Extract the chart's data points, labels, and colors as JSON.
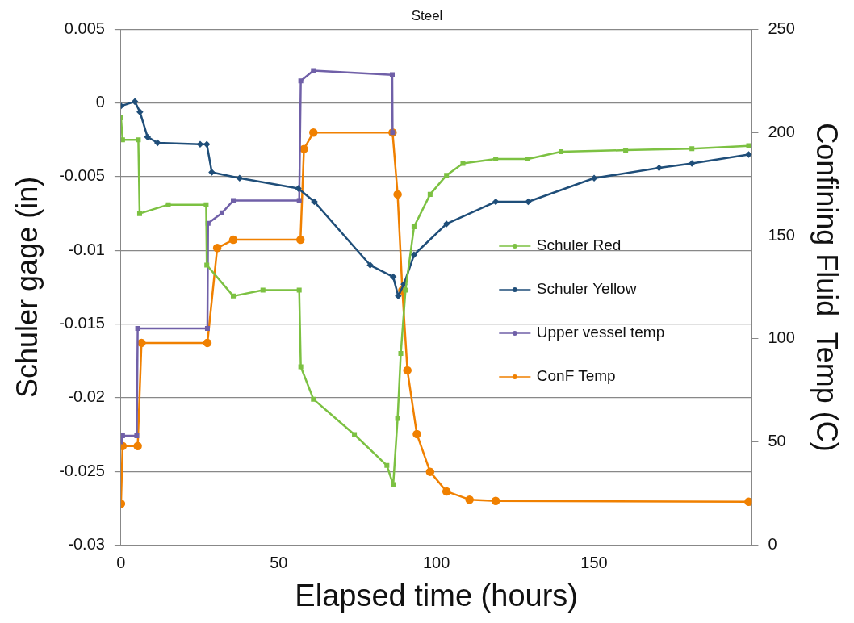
{
  "chart_data": {
    "type": "line",
    "title": "Steel",
    "xlabel": "Elapsed time (hours)",
    "ylabel": "Schuler gage (in)",
    "y2label": "Confining Fluid  Temp (C)",
    "xlim": [
      0,
      200
    ],
    "xticks": [
      0,
      50,
      100,
      150
    ],
    "ylim": [
      -0.03,
      0.005
    ],
    "yticks": [
      -0.03,
      -0.025,
      -0.02,
      -0.015,
      -0.01,
      -0.005,
      0,
      0.005
    ],
    "y2lim": [
      0,
      250
    ],
    "y2ticks": [
      0,
      50,
      100,
      150,
      200,
      250
    ],
    "grid": "y",
    "legend": "right",
    "line_style": "solid",
    "series": [
      {
        "name": "Schuler Red",
        "color": "#7cc142",
        "marker": "square",
        "x": [
          0,
          0.5,
          5.5,
          5.9,
          15,
          27,
          27.2,
          35.6,
          45,
          56.5,
          57,
          61,
          74,
          84.3,
          86.3,
          87.7,
          88.7,
          90.2,
          92.9,
          98,
          103.2,
          108.4,
          118.8,
          129,
          139.5,
          160,
          181,
          199
        ],
        "values": [
          -0.001,
          -0.0025,
          -0.0025,
          -0.0075,
          -0.0069,
          -0.0069,
          -0.011,
          -0.0131,
          -0.0127,
          -0.0127,
          -0.0179,
          -0.0201,
          -0.0225,
          -0.0246,
          -0.0259,
          -0.0214,
          -0.017,
          -0.0127,
          -0.0084,
          -0.0062,
          -0.0049,
          -0.0041,
          -0.0038,
          -0.0038,
          -0.0033,
          -0.0032,
          -0.0031,
          -0.0029
        ]
      },
      {
        "name": "Schuler Yellow",
        "color": "#1f4e79",
        "marker": "diamond",
        "x": [
          0,
          4.4,
          6,
          8.4,
          11.6,
          25.1,
          27.2,
          28.8,
          37.6,
          56.2,
          61.3,
          79,
          86.3,
          87.9,
          89.7,
          92.9,
          103.2,
          118.8,
          129.1,
          150,
          170.6,
          181,
          199
        ],
        "values": [
          -0.0002,
          0.0001,
          -0.0006,
          -0.0023,
          -0.0027,
          -0.0028,
          -0.0028,
          -0.0047,
          -0.0051,
          -0.0058,
          -0.0067,
          -0.011,
          -0.0118,
          -0.0131,
          -0.0123,
          -0.0103,
          -0.0082,
          -0.0067,
          -0.0067,
          -0.0051,
          -0.0044,
          -0.0041,
          -0.0035
        ]
      },
      {
        "name": "Upper vessel temp",
        "color": "#7060a8",
        "marker": "square",
        "axis": "y2",
        "x": [
          0,
          0.5,
          5,
          5.3,
          27.4,
          27.6,
          32,
          35.6,
          56.5,
          57,
          61,
          86,
          86.1
        ],
        "values": [
          50,
          53,
          53,
          105,
          105,
          156,
          161,
          167,
          167,
          225,
          230,
          228,
          200
        ]
      },
      {
        "name": "ConF Temp",
        "color": "#f08000",
        "marker": "circle",
        "axis": "y2",
        "x": [
          0,
          0.5,
          5.3,
          6.5,
          27.4,
          30.5,
          35.6,
          56.9,
          58,
          61,
          86.1,
          87.7,
          89.2,
          90.8,
          93.8,
          98,
          103.2,
          110.5,
          118.8,
          199
        ],
        "values": [
          20,
          48,
          48,
          98,
          98,
          144,
          148,
          148,
          192,
          200,
          200,
          170,
          123.5,
          84.7,
          53.8,
          35.5,
          26,
          22,
          21.4,
          21
        ]
      }
    ]
  }
}
